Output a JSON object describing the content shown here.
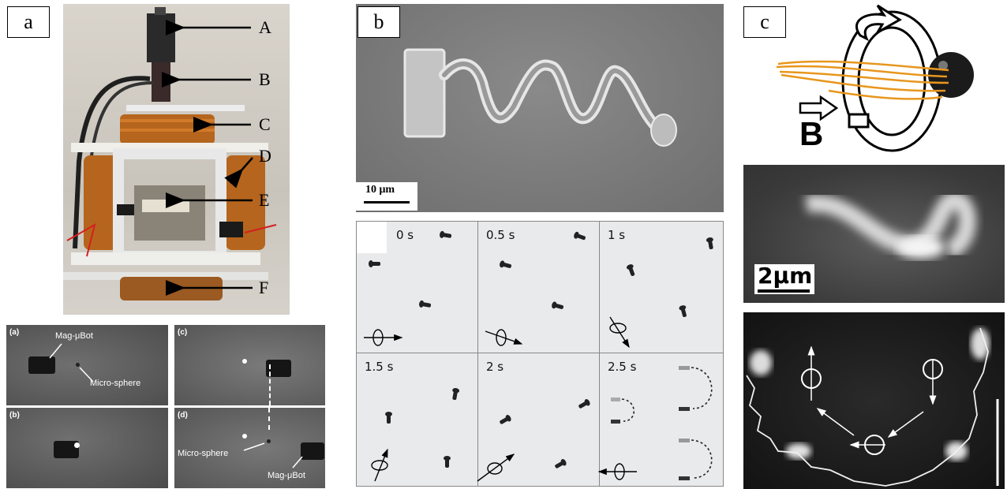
{
  "panels": {
    "a": {
      "label": "a",
      "arrow_labels": [
        "A",
        "B",
        "C",
        "D",
        "E",
        "F"
      ],
      "subpanels": {
        "a": "(a)",
        "b": "(b)",
        "c": "(c)",
        "d": "(d)"
      },
      "annotations": {
        "magbot_a": "Mag-μBot",
        "sphere_a": "Micro-sphere",
        "sphere_d": "Micro-sphere",
        "magbot_d": "Mag-μBot"
      }
    },
    "b": {
      "label": "b",
      "scale_bar": "10 μm",
      "times": [
        "0 s",
        "0.5 s",
        "1 s",
        "1.5 s",
        "2 s",
        "2.5 s"
      ]
    },
    "c": {
      "label": "c",
      "field_label": "B",
      "scale_bar": "2μm"
    }
  },
  "colors": {
    "fiber": "#e8961e",
    "copper": "#b5651d",
    "sem_gray": "#7a7a7a",
    "timelapse_bg": "#e9eaeb"
  }
}
